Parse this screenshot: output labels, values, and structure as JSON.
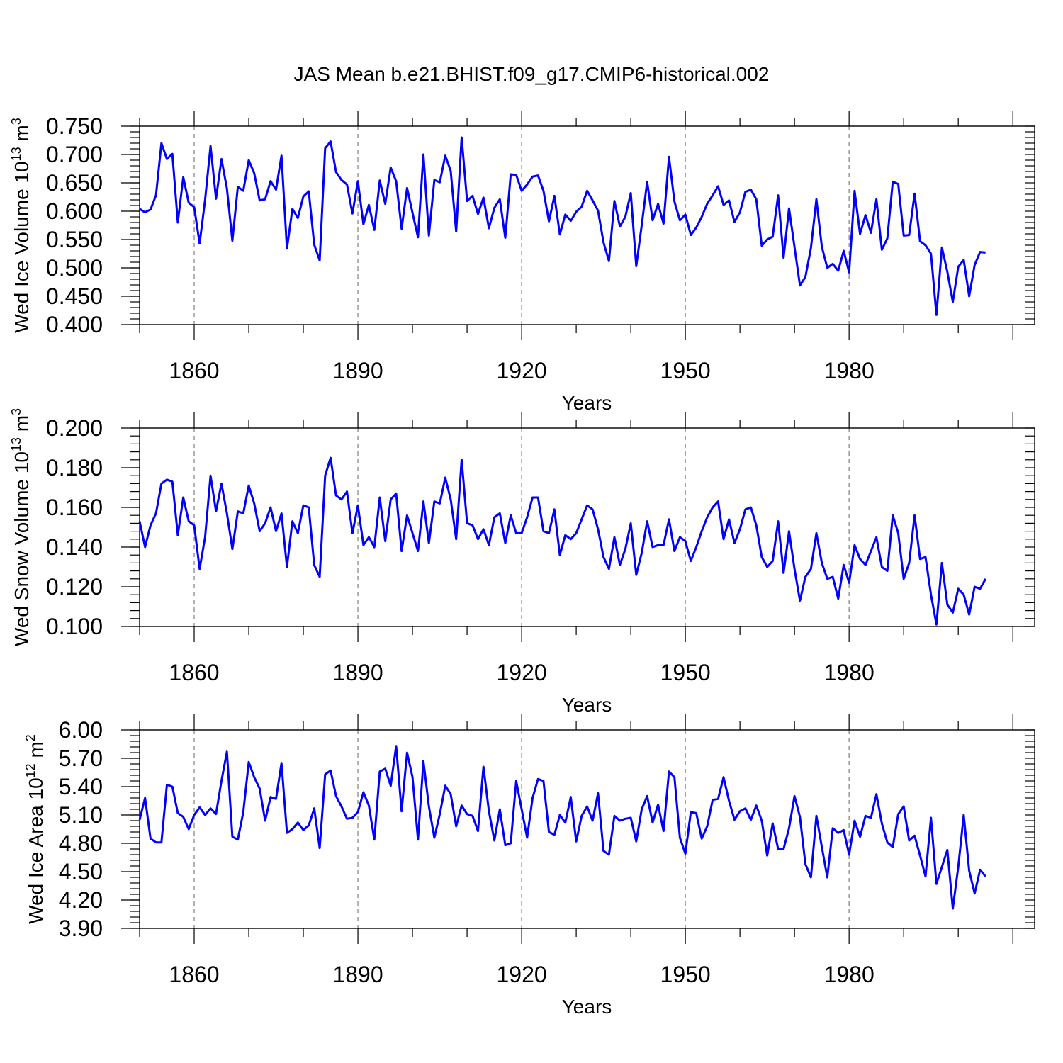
{
  "chart_data": [
    {
      "type": "line",
      "title": "JAS Mean b.e21.BHIST.f09_g17.CMIP6-historical.002",
      "xlabel": "Years",
      "ylabel": {
        "prefix": "Wed Ice Volume 10",
        "sup1": "13",
        "mid": " m",
        "sup2": "3"
      },
      "xlim": [
        1850,
        2014
      ],
      "ylim": [
        0.4,
        0.75
      ],
      "yticks": [
        "0.750",
        "0.700",
        "0.650",
        "0.600",
        "0.550",
        "0.500",
        "0.450",
        "0.400"
      ],
      "xticks": [
        "1860",
        "1890",
        "1920",
        "1950",
        "1980"
      ],
      "color": "#0000ff",
      "x_start": 1850,
      "values": [
        0.604,
        0.598,
        0.603,
        0.628,
        0.72,
        0.692,
        0.701,
        0.58,
        0.66,
        0.615,
        0.607,
        0.543,
        0.62,
        0.715,
        0.622,
        0.692,
        0.64,
        0.548,
        0.643,
        0.636,
        0.69,
        0.667,
        0.619,
        0.621,
        0.653,
        0.638,
        0.698,
        0.534,
        0.604,
        0.588,
        0.626,
        0.635,
        0.541,
        0.513,
        0.711,
        0.723,
        0.669,
        0.655,
        0.647,
        0.596,
        0.653,
        0.577,
        0.611,
        0.567,
        0.654,
        0.613,
        0.677,
        0.653,
        0.569,
        0.641,
        0.597,
        0.554,
        0.7,
        0.557,
        0.655,
        0.651,
        0.698,
        0.671,
        0.564,
        0.73,
        0.618,
        0.627,
        0.595,
        0.624,
        0.57,
        0.606,
        0.621,
        0.553,
        0.665,
        0.664,
        0.636,
        0.647,
        0.661,
        0.663,
        0.636,
        0.582,
        0.627,
        0.559,
        0.594,
        0.583,
        0.599,
        0.608,
        0.636,
        0.619,
        0.601,
        0.545,
        0.512,
        0.618,
        0.573,
        0.59,
        0.632,
        0.503,
        0.575,
        0.652,
        0.584,
        0.613,
        0.578,
        0.696,
        0.617,
        0.584,
        0.594,
        0.558,
        0.571,
        0.59,
        0.613,
        0.628,
        0.644,
        0.611,
        0.619,
        0.581,
        0.598,
        0.634,
        0.638,
        0.621,
        0.539,
        0.55,
        0.555,
        0.628,
        0.518,
        0.605,
        0.537,
        0.469,
        0.484,
        0.535,
        0.621,
        0.537,
        0.5,
        0.507,
        0.495,
        0.53,
        0.492,
        0.636,
        0.56,
        0.593,
        0.562,
        0.621,
        0.532,
        0.552,
        0.652,
        0.648,
        0.557,
        0.558,
        0.631,
        0.547,
        0.54,
        0.525,
        0.417,
        0.536,
        0.493,
        0.44,
        0.502,
        0.514,
        0.45,
        0.505,
        0.528,
        0.527
      ]
    },
    {
      "type": "line",
      "title": "",
      "xlabel": "Years",
      "ylabel": {
        "prefix": "Wed Snow Volume 10",
        "sup1": "13",
        "mid": " m",
        "sup2": "3"
      },
      "xlim": [
        1850,
        2014
      ],
      "ylim": [
        0.1,
        0.2
      ],
      "yticks": [
        "0.200",
        "0.180",
        "0.160",
        "0.140",
        "0.120",
        "0.100"
      ],
      "xticks": [
        "1860",
        "1890",
        "1920",
        "1950",
        "1980"
      ],
      "color": "#0000ff",
      "x_start": 1850,
      "values": [
        0.153,
        0.14,
        0.151,
        0.157,
        0.172,
        0.174,
        0.173,
        0.146,
        0.165,
        0.153,
        0.151,
        0.129,
        0.145,
        0.176,
        0.158,
        0.172,
        0.157,
        0.139,
        0.158,
        0.157,
        0.171,
        0.162,
        0.148,
        0.152,
        0.16,
        0.148,
        0.157,
        0.13,
        0.153,
        0.147,
        0.161,
        0.16,
        0.131,
        0.125,
        0.176,
        0.185,
        0.166,
        0.164,
        0.168,
        0.147,
        0.161,
        0.141,
        0.145,
        0.14,
        0.165,
        0.143,
        0.164,
        0.167,
        0.138,
        0.156,
        0.147,
        0.138,
        0.163,
        0.142,
        0.163,
        0.162,
        0.175,
        0.164,
        0.144,
        0.184,
        0.152,
        0.151,
        0.144,
        0.149,
        0.141,
        0.155,
        0.157,
        0.142,
        0.156,
        0.147,
        0.147,
        0.155,
        0.165,
        0.165,
        0.148,
        0.147,
        0.159,
        0.136,
        0.146,
        0.144,
        0.147,
        0.154,
        0.161,
        0.159,
        0.149,
        0.135,
        0.129,
        0.145,
        0.131,
        0.139,
        0.152,
        0.126,
        0.137,
        0.153,
        0.14,
        0.141,
        0.141,
        0.154,
        0.138,
        0.145,
        0.143,
        0.133,
        0.14,
        0.148,
        0.155,
        0.16,
        0.163,
        0.144,
        0.154,
        0.142,
        0.149,
        0.159,
        0.16,
        0.151,
        0.135,
        0.13,
        0.133,
        0.153,
        0.127,
        0.148,
        0.129,
        0.113,
        0.125,
        0.129,
        0.147,
        0.132,
        0.124,
        0.125,
        0.114,
        0.131,
        0.122,
        0.141,
        0.134,
        0.131,
        0.138,
        0.145,
        0.13,
        0.128,
        0.156,
        0.147,
        0.124,
        0.132,
        0.156,
        0.134,
        0.135,
        0.116,
        0.101,
        0.132,
        0.111,
        0.107,
        0.119,
        0.116,
        0.106,
        0.12,
        0.119,
        0.124
      ]
    },
    {
      "type": "line",
      "title": "",
      "xlabel": "Years",
      "ylabel": {
        "prefix": "Wed Ice Area 10",
        "sup1": "12",
        "mid": " m",
        "sup2": "2"
      },
      "xlim": [
        1850,
        2014
      ],
      "ylim": [
        3.9,
        6.0
      ],
      "yticks": [
        "6.00",
        "5.70",
        "5.40",
        "5.10",
        "4.80",
        "4.50",
        "4.20",
        "3.90"
      ],
      "xticks": [
        "1860",
        "1890",
        "1920",
        "1950",
        "1980"
      ],
      "color": "#0000ff",
      "x_start": 1850,
      "values": [
        5.05,
        5.28,
        4.85,
        4.81,
        4.81,
        5.42,
        5.4,
        5.12,
        5.08,
        4.95,
        5.1,
        5.18,
        5.1,
        5.17,
        5.11,
        5.46,
        5.77,
        4.87,
        4.84,
        5.13,
        5.66,
        5.5,
        5.38,
        5.04,
        5.29,
        5.27,
        5.65,
        4.91,
        4.95,
        5.02,
        4.94,
        4.99,
        5.17,
        4.75,
        5.53,
        5.57,
        5.3,
        5.19,
        5.06,
        5.07,
        5.13,
        5.34,
        5.2,
        4.84,
        5.56,
        5.59,
        5.41,
        5.83,
        5.14,
        5.76,
        5.5,
        4.84,
        5.67,
        5.19,
        4.86,
        5.11,
        5.41,
        5.32,
        4.98,
        5.2,
        5.11,
        5.09,
        4.93,
        5.61,
        5.14,
        4.83,
        5.16,
        4.78,
        4.8,
        5.46,
        5.16,
        4.86,
        5.28,
        5.48,
        5.46,
        4.92,
        4.89,
        5.1,
        5.02,
        5.29,
        4.82,
        5.09,
        5.19,
        5.04,
        5.33,
        4.72,
        4.68,
        5.09,
        5.04,
        5.06,
        5.07,
        4.82,
        5.16,
        5.3,
        5.02,
        5.21,
        4.93,
        5.56,
        5.5,
        4.86,
        4.69,
        5.13,
        5.12,
        4.85,
        4.98,
        5.26,
        5.27,
        5.5,
        5.25,
        5.05,
        5.14,
        5.17,
        5.05,
        5.2,
        5.04,
        4.67,
        5.01,
        4.74,
        4.74,
        4.96,
        5.3,
        5.08,
        4.58,
        4.44,
        5.09,
        4.76,
        4.44,
        4.96,
        4.91,
        4.94,
        4.68,
        5.04,
        4.87,
        5.09,
        5.07,
        5.32,
        5.01,
        4.81,
        4.76,
        5.11,
        5.19,
        4.83,
        4.88,
        4.67,
        4.45,
        5.07,
        4.37,
        4.55,
        4.73,
        4.11,
        4.55,
        5.1,
        4.51,
        4.27,
        4.52,
        4.45
      ]
    }
  ]
}
